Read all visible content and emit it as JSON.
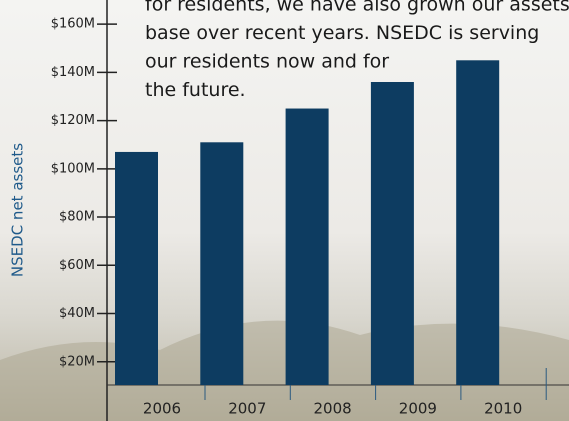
{
  "chart_data": {
    "type": "bar",
    "annotation": [
      "for residents, we have also grown our assets",
      "base over recent years.  NSEDC is serving",
      "our residents now and for",
      "the future."
    ],
    "y_label": "NSEDC net assets",
    "categories": [
      "2006",
      "2007",
      "2008",
      "2009",
      "2010"
    ],
    "values": [
      107,
      111,
      125,
      136,
      145
    ],
    "color": "#0d3c61",
    "ylim": [
      0,
      170
    ],
    "yticks": [
      {
        "value": 20,
        "label": "$20M"
      },
      {
        "value": 40,
        "label": "$40M"
      },
      {
        "value": 60,
        "label": "$60M"
      },
      {
        "value": 80,
        "label": "$80M"
      },
      {
        "value": 100,
        "label": "$100M"
      },
      {
        "value": 120,
        "label": "$120M"
      },
      {
        "value": 140,
        "label": "$140M"
      },
      {
        "value": 160,
        "label": "$160M"
      }
    ]
  }
}
